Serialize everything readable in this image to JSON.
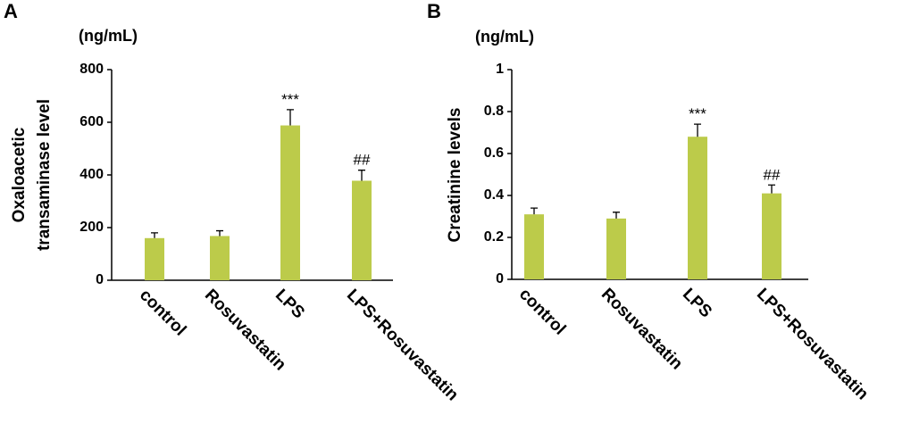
{
  "chart_data": [
    {
      "type": "bar",
      "panel": "A",
      "unit": "(ng/mL)",
      "ylabel": [
        "Oxaloacetic",
        "transaminase level"
      ],
      "categories": [
        "control",
        "Rosuvastatin",
        "LPS",
        "LPS+Rosuvastatin"
      ],
      "values": [
        160,
        168,
        588,
        378
      ],
      "errors": [
        20,
        20,
        60,
        40
      ],
      "annotations": [
        null,
        null,
        "***",
        "##"
      ],
      "color": "#bccb4a",
      "ylim": [
        0,
        800
      ],
      "yticks": [
        0,
        200,
        400,
        600,
        800
      ]
    },
    {
      "type": "bar",
      "panel": "B",
      "unit": "(ng/mL)",
      "ylabel": [
        "Creatinine levels"
      ],
      "categories": [
        "control",
        "Rosuvastatin",
        "LPS",
        "LPS+Rosuvastatin"
      ],
      "values": [
        0.31,
        0.29,
        0.68,
        0.41
      ],
      "errors": [
        0.03,
        0.03,
        0.06,
        0.04
      ],
      "annotations": [
        null,
        null,
        "***",
        "##"
      ],
      "color": "#bccb4a",
      "ylim": [
        0,
        1
      ],
      "yticks": [
        0,
        0.2,
        0.4,
        0.6,
        0.8,
        1
      ]
    }
  ]
}
